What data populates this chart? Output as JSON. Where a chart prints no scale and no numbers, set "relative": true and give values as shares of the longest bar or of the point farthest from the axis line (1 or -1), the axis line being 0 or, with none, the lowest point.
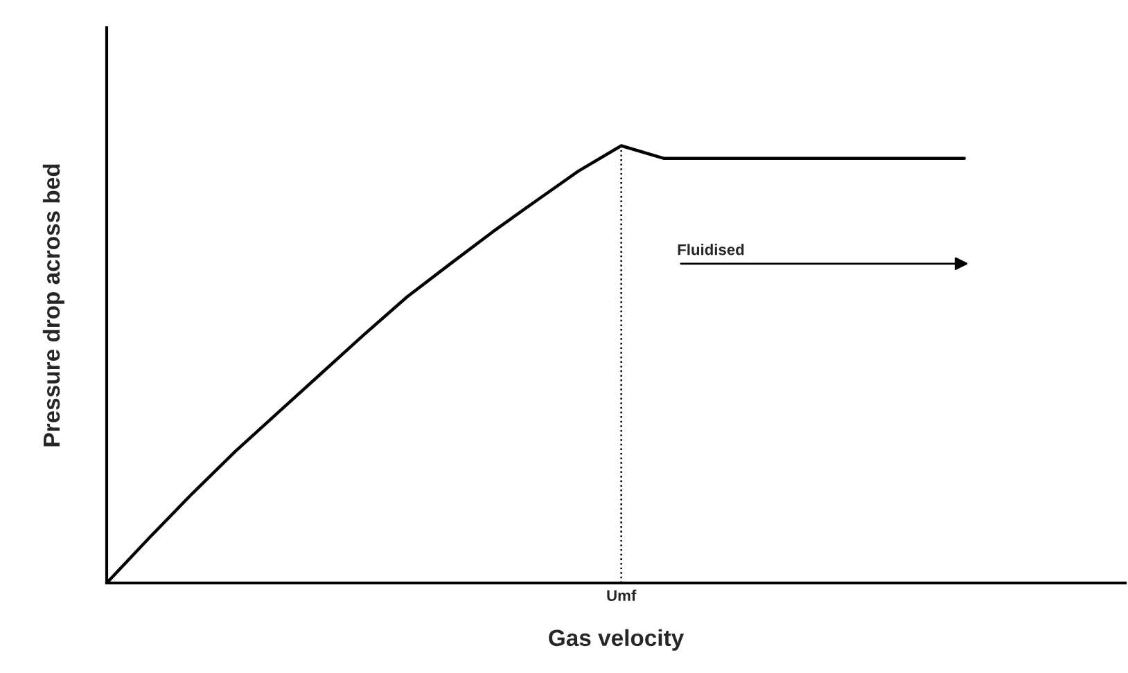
{
  "chart_data": {
    "type": "line",
    "relative": true,
    "xlabel": "Gas velocity",
    "ylabel": "Pressure drop across bed",
    "categories": [
      null,
      null,
      null,
      null,
      null,
      null,
      null,
      null,
      null,
      null,
      null,
      null,
      null,
      null,
      null,
      null,
      null,
      null,
      null,
      null,
      null
    ],
    "series": [
      {
        "color": "#000000",
        "values": [
          0,
          0.104,
          0.205,
          0.301,
          0.39,
          0.479,
          0.568,
          0.654,
          0.729,
          0.803,
          0.873,
          0.942,
          1.0,
          0.971,
          0.971,
          0.971,
          0.971,
          0.971,
          0.971,
          0.971,
          0.971
        ]
      }
    ],
    "ref_lines": [
      {
        "axis": "x",
        "label": "Umf",
        "color": "#000000",
        "line_style": "dotted"
      }
    ],
    "annotations": [
      "Fluidised"
    ]
  }
}
